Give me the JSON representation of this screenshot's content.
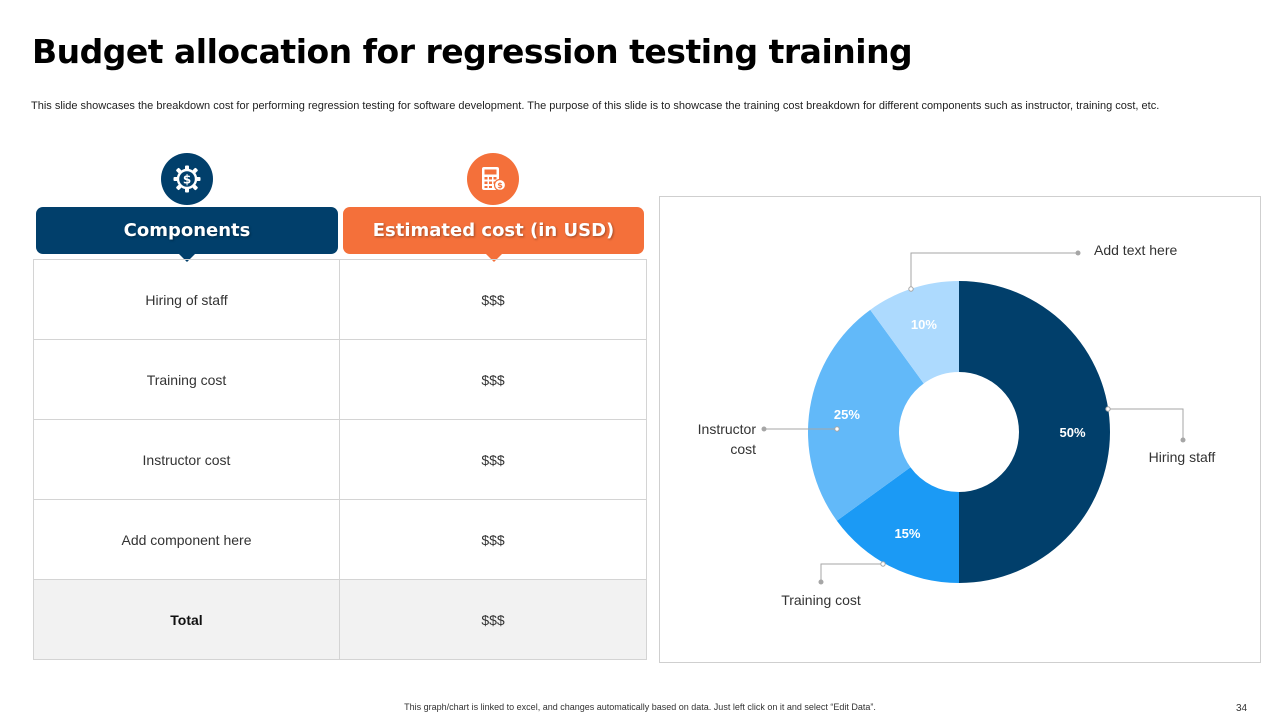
{
  "page": {
    "title": "Budget allocation for regression testing training",
    "description": "This slide showcases the breakdown cost for performing regression testing for software development. The purpose of this slide is to showcase the training cost breakdown for different components such as instructor, training cost, etc.",
    "footer_note": "This graph/chart is linked to excel, and changes automatically based on data. Just left click on it and select “Edit Data”.",
    "page_number": "34"
  },
  "table": {
    "headers": {
      "components": "Components",
      "cost": "Estimated cost (in USD)"
    },
    "header_icons": {
      "components": "gear-money-icon",
      "cost": "calculator-icon"
    },
    "rows": [
      {
        "component": "Hiring of staff",
        "cost": "$$$"
      },
      {
        "component": "Training cost",
        "cost": "$$$"
      },
      {
        "component": "Instructor cost",
        "cost": "$$$"
      },
      {
        "component": "Add component here",
        "cost": "$$$"
      }
    ],
    "total": {
      "label": "Total",
      "cost": "$$$"
    }
  },
  "colors": {
    "navy": "#013F6B",
    "orange": "#F4703A",
    "blue": "#1B9AF5",
    "sky": "#62B9F9",
    "pale": "#ADDAFE"
  },
  "chart_data": {
    "type": "pie",
    "donut": true,
    "slices": [
      {
        "label": "Hiring staff",
        "value": 50,
        "display": "50%",
        "color": "#013F6B"
      },
      {
        "label": "Training cost",
        "value": 15,
        "display": "15%",
        "color": "#1B9AF5"
      },
      {
        "label": "Instructor cost",
        "value": 25,
        "display": "25%",
        "color": "#62B9F9"
      },
      {
        "label": "Add text here",
        "value": 10,
        "display": "10%",
        "color": "#ADDAFE"
      }
    ],
    "legend": "none",
    "data_labels": "inside"
  }
}
